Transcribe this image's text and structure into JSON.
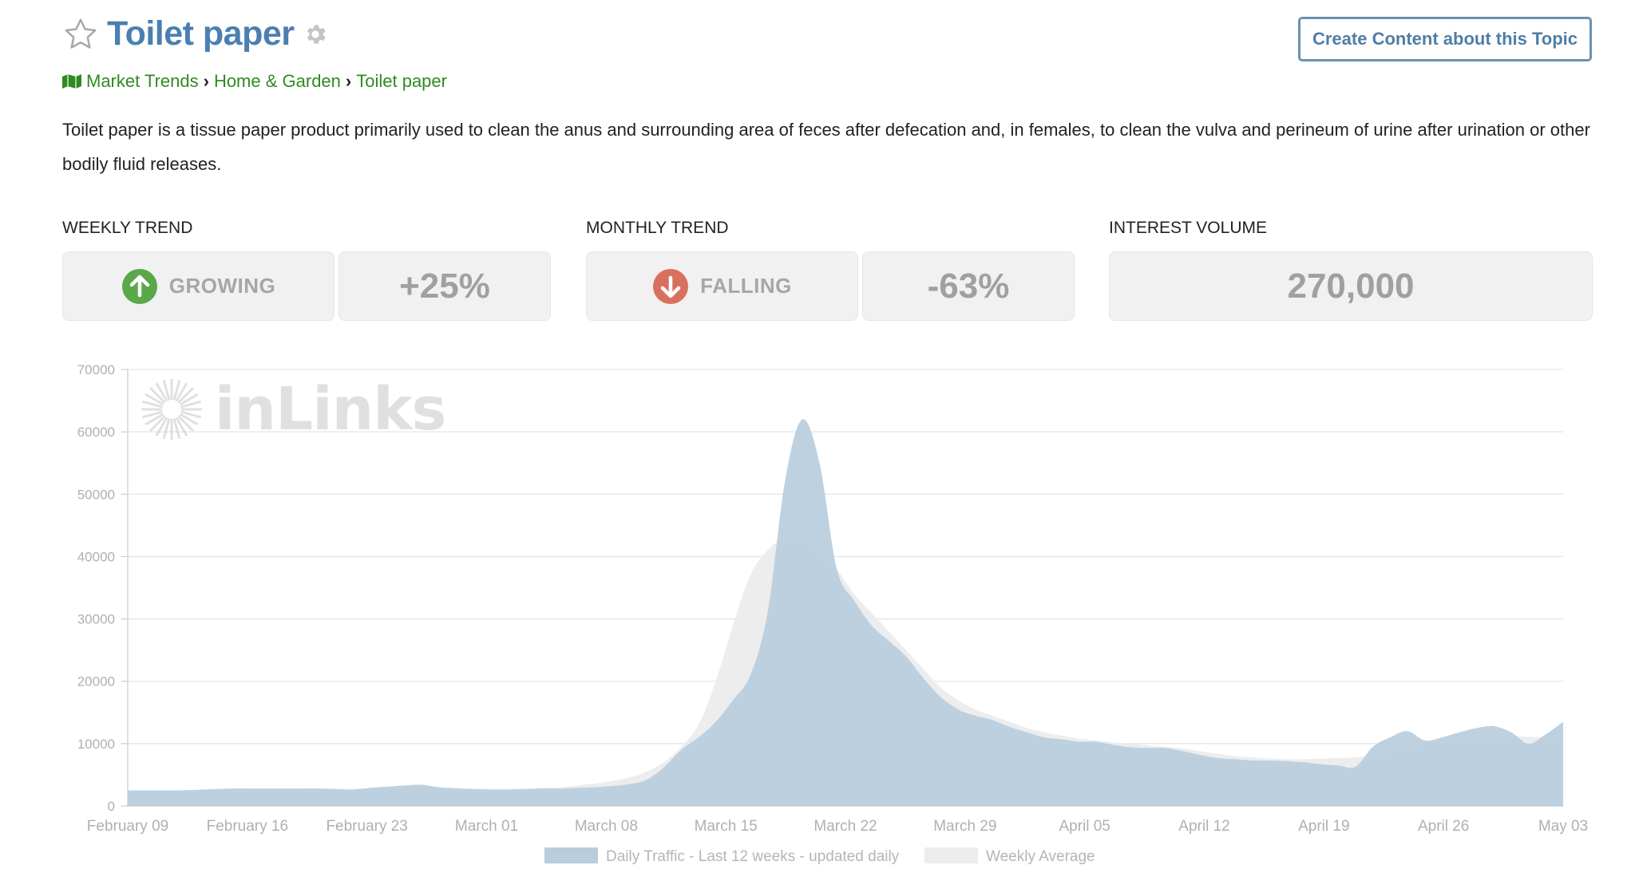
{
  "topic": {
    "title": "Toilet paper",
    "create_button": "Create Content about this Topic"
  },
  "breadcrumb": {
    "items": [
      "Market Trends",
      "Home & Garden",
      "Toilet paper"
    ],
    "separator": "›"
  },
  "description": "Toilet paper is a tissue paper product primarily used to clean the anus and surrounding area of feces after defecation and, in females, to clean the vulva and perineum of urine after urination or other bodily fluid releases.",
  "stats": {
    "weekly": {
      "label": "WEEKLY TREND",
      "direction": "GROWING",
      "change": "+25%",
      "color": "#5aa84a"
    },
    "monthly": {
      "label": "MONTHLY TREND",
      "direction": "FALLING",
      "change": "-63%",
      "color": "#d9705f"
    },
    "volume": {
      "label": "INTEREST VOLUME",
      "value": "270,000"
    }
  },
  "watermark": "inLinks",
  "colors": {
    "accent": "#4a7fb0",
    "breadcrumb": "#2e8b1f",
    "daily_fill": "#b8cddd",
    "weekly_fill": "#ececec"
  },
  "chart_data": {
    "type": "area",
    "ylim": [
      0,
      70000
    ],
    "yticks": [
      0,
      10000,
      20000,
      30000,
      40000,
      50000,
      60000,
      70000
    ],
    "ytick_labels": [
      "0",
      "10000",
      "20000",
      "30000",
      "40000",
      "50000",
      "60000",
      "70000"
    ],
    "xtick_labels": [
      "February 09",
      "February 16",
      "February 23",
      "March 01",
      "March 08",
      "March 15",
      "March 22",
      "March 29",
      "April 05",
      "April 12",
      "April 19",
      "April 26",
      "May 03"
    ],
    "grid": true,
    "legend": "bottom",
    "series": [
      {
        "name": "Daily Traffic - Last 12 weeks - updated daily",
        "values": [
          2500,
          2500,
          2500,
          2500,
          2600,
          2700,
          2800,
          2800,
          2800,
          2800,
          2800,
          2800,
          2700,
          2600,
          2900,
          3100,
          3300,
          3400,
          3000,
          2800,
          2700,
          2600,
          2600,
          2700,
          2800,
          2800,
          2900,
          3000,
          3200,
          3500,
          4200,
          6200,
          9000,
          11000,
          13500,
          17000,
          21000,
          31000,
          52000,
          62000,
          55000,
          38000,
          33000,
          29000,
          26500,
          24000,
          20500,
          17500,
          15500,
          14500,
          13800,
          12700,
          11800,
          11000,
          10700,
          10300,
          10300,
          9800,
          9400,
          9300,
          9300,
          8800,
          8200,
          7700,
          7500,
          7300,
          7300,
          7200,
          7000,
          6700,
          6500,
          6300,
          9500,
          11000,
          12000,
          10500,
          11000,
          11800,
          12500,
          12800,
          11800,
          10000,
          11500,
          13500
        ]
      },
      {
        "name": "Weekly Average",
        "values": [
          2500,
          2500,
          2500,
          2500,
          2500,
          2600,
          2700,
          2700,
          2800,
          2800,
          2800,
          2800,
          2800,
          2800,
          2800,
          2900,
          3000,
          3000,
          3000,
          2900,
          2800,
          2800,
          2800,
          2800,
          2900,
          3000,
          3300,
          3600,
          4000,
          4600,
          5500,
          7000,
          9500,
          13000,
          20000,
          29000,
          37000,
          41000,
          43000,
          42800,
          41000,
          38000,
          34000,
          31000,
          28000,
          25000,
          22000,
          19000,
          17000,
          15500,
          14500,
          13500,
          12500,
          11800,
          11300,
          10800,
          10500,
          10200,
          10000,
          9700,
          9500,
          9200,
          8800,
          8400,
          8000,
          7800,
          7600,
          7500,
          7500,
          7600,
          7700,
          7800,
          8200,
          8800,
          9400,
          9900,
          10300,
          10600,
          10900,
          11100,
          11200,
          11100,
          11000,
          11200
        ]
      }
    ]
  }
}
